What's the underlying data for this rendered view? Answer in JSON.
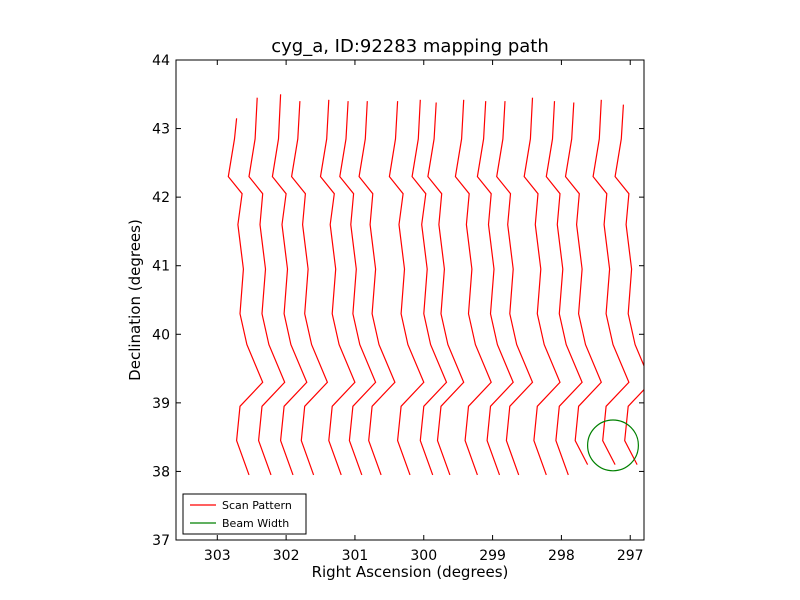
{
  "chart_data": {
    "type": "line",
    "title": "cyg_a, ID:92283 mapping path",
    "xlabel": "Right Ascension (degrees)",
    "ylabel": "Declination (degrees)",
    "xlim": [
      303.6,
      296.8
    ],
    "ylim": [
      37,
      44
    ],
    "x_inverted": true,
    "xticks": [
      303,
      302,
      301,
      300,
      299,
      298,
      297
    ],
    "yticks": [
      37,
      38,
      39,
      40,
      41,
      42,
      43,
      44
    ],
    "grid": false,
    "legend_position": "lower-left",
    "series": [
      {
        "name": "Scan Pattern",
        "color": "#ff0000",
        "scan_columns": [
          {
            "x_top": 302.72,
            "x_low": 302.62,
            "y_top": 43.15,
            "y_bottom": 37.95
          },
          {
            "x_top": 302.42,
            "x_low": 302.3,
            "y_top": 43.45,
            "y_bottom": 37.95
          },
          {
            "x_top": 302.08,
            "x_low": 301.98,
            "y_top": 43.5,
            "y_bottom": 37.95
          },
          {
            "x_top": 301.8,
            "x_low": 301.68,
            "y_top": 43.4,
            "y_bottom": 37.95
          },
          {
            "x_top": 301.38,
            "x_low": 301.28,
            "y_top": 43.42,
            "y_bottom": 37.95
          },
          {
            "x_top": 301.1,
            "x_low": 300.98,
            "y_top": 43.4,
            "y_bottom": 37.95
          },
          {
            "x_top": 300.82,
            "x_low": 300.7,
            "y_top": 43.4,
            "y_bottom": 37.95
          },
          {
            "x_top": 300.38,
            "x_low": 300.28,
            "y_top": 43.4,
            "y_bottom": 37.95
          },
          {
            "x_top": 300.05,
            "x_low": 299.95,
            "y_top": 43.42,
            "y_bottom": 37.95
          },
          {
            "x_top": 299.82,
            "x_low": 299.7,
            "y_top": 43.38,
            "y_bottom": 37.95
          },
          {
            "x_top": 299.42,
            "x_low": 299.3,
            "y_top": 43.42,
            "y_bottom": 37.95
          },
          {
            "x_top": 299.1,
            "x_low": 298.98,
            "y_top": 43.4,
            "y_bottom": 37.95
          },
          {
            "x_top": 298.82,
            "x_low": 298.7,
            "y_top": 43.4,
            "y_bottom": 37.95
          },
          {
            "x_top": 298.42,
            "x_low": 298.3,
            "y_top": 43.45,
            "y_bottom": 37.95
          },
          {
            "x_top": 298.1,
            "x_low": 297.98,
            "y_top": 43.4,
            "y_bottom": 37.95
          },
          {
            "x_top": 297.82,
            "x_low": 297.7,
            "y_top": 43.38,
            "y_bottom": 38.1
          },
          {
            "x_top": 297.42,
            "x_low": 297.3,
            "y_top": 43.42,
            "y_bottom": 38.1
          },
          {
            "x_top": 297.1,
            "x_low": 296.98,
            "y_top": 43.35,
            "y_bottom": 38.1
          }
        ]
      },
      {
        "name": "Beam Width",
        "color": "#008000",
        "circle": {
          "ra": 297.25,
          "dec": 38.38,
          "radius_deg": 0.37
        }
      }
    ]
  }
}
